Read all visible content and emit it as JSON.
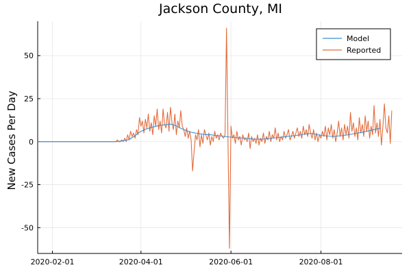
{
  "chart_data": {
    "type": "line",
    "title": "Jackson County, MI",
    "xlabel": "",
    "ylabel": "New Cases Per Day",
    "x_ticks": [
      "2020-02-01",
      "2020-04-01",
      "2020-06-01",
      "2020-08-01"
    ],
    "y_ticks": [
      -50,
      -25,
      0,
      25,
      50
    ],
    "xlim": [
      "2020-01-22",
      "2020-09-25"
    ],
    "ylim": [
      -65,
      70
    ],
    "grid": true,
    "legend_position": "top-right",
    "series": [
      {
        "name": "Model",
        "color": "#3a8fd6",
        "points": [
          [
            "2020-01-22",
            0
          ],
          [
            "2020-03-15",
            0
          ],
          [
            "2020-03-20",
            0.5
          ],
          [
            "2020-03-24",
            1.2
          ],
          [
            "2020-03-28",
            3.5
          ],
          [
            "2020-04-01",
            6
          ],
          [
            "2020-04-05",
            7.5
          ],
          [
            "2020-04-09",
            8.5
          ],
          [
            "2020-04-13",
            9.3
          ],
          [
            "2020-04-17",
            9.8
          ],
          [
            "2020-04-21",
            10.2
          ],
          [
            "2020-04-24",
            9.5
          ],
          [
            "2020-04-27",
            8.2
          ],
          [
            "2020-04-30",
            7
          ],
          [
            "2020-05-03",
            6
          ],
          [
            "2020-05-06",
            5.3
          ],
          [
            "2020-05-10",
            4.6
          ],
          [
            "2020-05-14",
            4.2
          ],
          [
            "2020-05-18",
            4
          ],
          [
            "2020-05-22",
            3.6
          ],
          [
            "2020-05-26",
            3.2
          ],
          [
            "2020-05-30",
            2.8
          ],
          [
            "2020-06-03",
            2.5
          ],
          [
            "2020-06-07",
            2.2
          ],
          [
            "2020-06-11",
            2
          ],
          [
            "2020-06-15",
            1.6
          ],
          [
            "2020-06-19",
            1.4
          ],
          [
            "2020-06-23",
            1.5
          ],
          [
            "2020-06-27",
            1.8
          ],
          [
            "2020-07-01",
            2.2
          ],
          [
            "2020-07-05",
            2.6
          ],
          [
            "2020-07-09",
            3
          ],
          [
            "2020-07-13",
            3.4
          ],
          [
            "2020-07-17",
            3.8
          ],
          [
            "2020-07-21",
            4.4
          ],
          [
            "2020-07-25",
            4.8
          ],
          [
            "2020-07-29",
            4.2
          ],
          [
            "2020-08-02",
            3.6
          ],
          [
            "2020-08-06",
            3.2
          ],
          [
            "2020-08-10",
            3
          ],
          [
            "2020-08-14",
            3.4
          ],
          [
            "2020-08-18",
            3.8
          ],
          [
            "2020-08-22",
            4.4
          ],
          [
            "2020-08-26",
            5
          ],
          [
            "2020-08-30",
            5.6
          ],
          [
            "2020-09-03",
            6.4
          ],
          [
            "2020-09-07",
            7.2
          ],
          [
            "2020-09-10",
            7.8
          ]
        ]
      },
      {
        "name": "Reported",
        "color": "#e26b3a",
        "points": [
          [
            "2020-01-22",
            0
          ],
          [
            "2020-03-15",
            0
          ],
          [
            "2020-03-16",
            1
          ],
          [
            "2020-03-17",
            0
          ],
          [
            "2020-03-18",
            0
          ],
          [
            "2020-03-19",
            1
          ],
          [
            "2020-03-20",
            0
          ],
          [
            "2020-03-21",
            2
          ],
          [
            "2020-03-22",
            0
          ],
          [
            "2020-03-23",
            4
          ],
          [
            "2020-03-24",
            1
          ],
          [
            "2020-03-25",
            6
          ],
          [
            "2020-03-26",
            3
          ],
          [
            "2020-03-27",
            5
          ],
          [
            "2020-03-28",
            2
          ],
          [
            "2020-03-29",
            7
          ],
          [
            "2020-03-30",
            4
          ],
          [
            "2020-03-31",
            14
          ],
          [
            "2020-04-01",
            9
          ],
          [
            "2020-04-02",
            12
          ],
          [
            "2020-04-03",
            5
          ],
          [
            "2020-04-04",
            13
          ],
          [
            "2020-04-05",
            8
          ],
          [
            "2020-04-06",
            16
          ],
          [
            "2020-04-07",
            6
          ],
          [
            "2020-04-08",
            11
          ],
          [
            "2020-04-09",
            4
          ],
          [
            "2020-04-10",
            15
          ],
          [
            "2020-04-11",
            9
          ],
          [
            "2020-04-12",
            19
          ],
          [
            "2020-04-13",
            7
          ],
          [
            "2020-04-14",
            12
          ],
          [
            "2020-04-15",
            5
          ],
          [
            "2020-04-16",
            19
          ],
          [
            "2020-04-17",
            10
          ],
          [
            "2020-04-18",
            8
          ],
          [
            "2020-04-19",
            17
          ],
          [
            "2020-04-20",
            6
          ],
          [
            "2020-04-21",
            20
          ],
          [
            "2020-04-22",
            11
          ],
          [
            "2020-04-23",
            7
          ],
          [
            "2020-04-24",
            16
          ],
          [
            "2020-04-25",
            4
          ],
          [
            "2020-04-26",
            12
          ],
          [
            "2020-04-27",
            8
          ],
          [
            "2020-04-28",
            18
          ],
          [
            "2020-04-29",
            9
          ],
          [
            "2020-04-30",
            7
          ],
          [
            "2020-05-01",
            3
          ],
          [
            "2020-05-02",
            8
          ],
          [
            "2020-05-03",
            2
          ],
          [
            "2020-05-04",
            6
          ],
          [
            "2020-05-05",
            1
          ],
          [
            "2020-05-06",
            -17
          ],
          [
            "2020-05-07",
            -6
          ],
          [
            "2020-05-08",
            4
          ],
          [
            "2020-05-09",
            1
          ],
          [
            "2020-05-10",
            7
          ],
          [
            "2020-05-11",
            -3
          ],
          [
            "2020-05-12",
            4
          ],
          [
            "2020-05-13",
            -1
          ],
          [
            "2020-05-14",
            7
          ],
          [
            "2020-05-15",
            4
          ],
          [
            "2020-05-16",
            1
          ],
          [
            "2020-05-17",
            5
          ],
          [
            "2020-05-18",
            -2
          ],
          [
            "2020-05-19",
            3
          ],
          [
            "2020-05-20",
            0
          ],
          [
            "2020-05-21",
            6
          ],
          [
            "2020-05-22",
            2
          ],
          [
            "2020-05-23",
            4
          ],
          [
            "2020-05-24",
            1
          ],
          [
            "2020-05-25",
            5
          ],
          [
            "2020-05-26",
            3
          ],
          [
            "2020-05-27",
            2
          ],
          [
            "2020-05-28",
            4
          ],
          [
            "2020-05-29",
            66
          ],
          [
            "2020-05-30",
            0
          ],
          [
            "2020-05-31",
            -62
          ],
          [
            "2020-06-01",
            9
          ],
          [
            "2020-06-02",
            2
          ],
          [
            "2020-06-03",
            4
          ],
          [
            "2020-06-04",
            -1
          ],
          [
            "2020-06-05",
            6
          ],
          [
            "2020-06-06",
            1
          ],
          [
            "2020-06-07",
            3
          ],
          [
            "2020-06-08",
            -2
          ],
          [
            "2020-06-09",
            4
          ],
          [
            "2020-06-10",
            1
          ],
          [
            "2020-06-11",
            2
          ],
          [
            "2020-06-12",
            0
          ],
          [
            "2020-06-13",
            5
          ],
          [
            "2020-06-14",
            -4
          ],
          [
            "2020-06-15",
            3
          ],
          [
            "2020-06-16",
            0
          ],
          [
            "2020-06-17",
            2
          ],
          [
            "2020-06-18",
            -1
          ],
          [
            "2020-06-19",
            4
          ],
          [
            "2020-06-20",
            -2
          ],
          [
            "2020-06-21",
            2
          ],
          [
            "2020-06-22",
            0
          ],
          [
            "2020-06-23",
            5
          ],
          [
            "2020-06-24",
            -1
          ],
          [
            "2020-06-25",
            3
          ],
          [
            "2020-06-26",
            1
          ],
          [
            "2020-06-27",
            6
          ],
          [
            "2020-06-28",
            0
          ],
          [
            "2020-06-29",
            4
          ],
          [
            "2020-06-30",
            2
          ],
          [
            "2020-07-01",
            8
          ],
          [
            "2020-07-02",
            1
          ],
          [
            "2020-07-03",
            5
          ],
          [
            "2020-07-04",
            0
          ],
          [
            "2020-07-05",
            3
          ],
          [
            "2020-07-06",
            1
          ],
          [
            "2020-07-07",
            6
          ],
          [
            "2020-07-08",
            2
          ],
          [
            "2020-07-09",
            4
          ],
          [
            "2020-07-10",
            7
          ],
          [
            "2020-07-11",
            1
          ],
          [
            "2020-07-12",
            3
          ],
          [
            "2020-07-13",
            6
          ],
          [
            "2020-07-14",
            2
          ],
          [
            "2020-07-15",
            5
          ],
          [
            "2020-07-16",
            8
          ],
          [
            "2020-07-17",
            3
          ],
          [
            "2020-07-18",
            6
          ],
          [
            "2020-07-19",
            2
          ],
          [
            "2020-07-20",
            9
          ],
          [
            "2020-07-21",
            4
          ],
          [
            "2020-07-22",
            7
          ],
          [
            "2020-07-23",
            3
          ],
          [
            "2020-07-24",
            10
          ],
          [
            "2020-07-25",
            5
          ],
          [
            "2020-07-26",
            2
          ],
          [
            "2020-07-27",
            7
          ],
          [
            "2020-07-28",
            1
          ],
          [
            "2020-07-29",
            5
          ],
          [
            "2020-07-30",
            0
          ],
          [
            "2020-07-31",
            4
          ],
          [
            "2020-08-01",
            2
          ],
          [
            "2020-08-02",
            6
          ],
          [
            "2020-08-03",
            3
          ],
          [
            "2020-08-04",
            9
          ],
          [
            "2020-08-05",
            1
          ],
          [
            "2020-08-06",
            8
          ],
          [
            "2020-08-07",
            4
          ],
          [
            "2020-08-08",
            10
          ],
          [
            "2020-08-09",
            2
          ],
          [
            "2020-08-10",
            7
          ],
          [
            "2020-08-11",
            0
          ],
          [
            "2020-08-12",
            5
          ],
          [
            "2020-08-13",
            12
          ],
          [
            "2020-08-14",
            3
          ],
          [
            "2020-08-15",
            8
          ],
          [
            "2020-08-16",
            1
          ],
          [
            "2020-08-17",
            10
          ],
          [
            "2020-08-18",
            4
          ],
          [
            "2020-08-19",
            9
          ],
          [
            "2020-08-20",
            2
          ],
          [
            "2020-08-21",
            17
          ],
          [
            "2020-08-22",
            6
          ],
          [
            "2020-08-23",
            11
          ],
          [
            "2020-08-24",
            3
          ],
          [
            "2020-08-25",
            8
          ],
          [
            "2020-08-26",
            1
          ],
          [
            "2020-08-27",
            14
          ],
          [
            "2020-08-28",
            5
          ],
          [
            "2020-08-29",
            10
          ],
          [
            "2020-08-30",
            3
          ],
          [
            "2020-08-31",
            15
          ],
          [
            "2020-09-01",
            6
          ],
          [
            "2020-09-02",
            12
          ],
          [
            "2020-09-03",
            2
          ],
          [
            "2020-09-04",
            9
          ],
          [
            "2020-09-05",
            4
          ],
          [
            "2020-09-06",
            21
          ],
          [
            "2020-09-07",
            5
          ],
          [
            "2020-09-08",
            11
          ],
          [
            "2020-09-09",
            3
          ],
          [
            "2020-09-10",
            13
          ],
          [
            "2020-09-11",
            -2
          ],
          [
            "2020-09-12",
            9
          ],
          [
            "2020-09-13",
            22
          ],
          [
            "2020-09-14",
            8
          ],
          [
            "2020-09-15",
            5
          ],
          [
            "2020-09-16",
            15
          ],
          [
            "2020-09-17",
            -1
          ],
          [
            "2020-09-18",
            18
          ]
        ]
      }
    ]
  }
}
